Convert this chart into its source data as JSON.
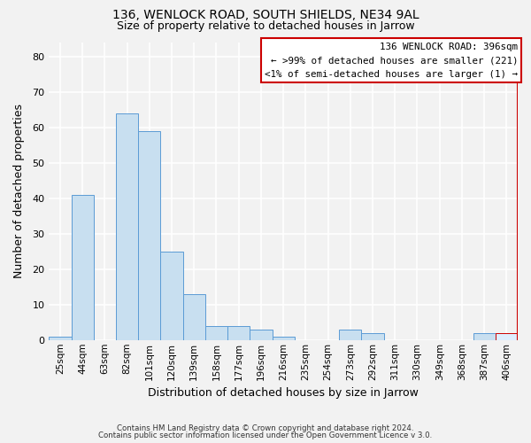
{
  "title": "136, WENLOCK ROAD, SOUTH SHIELDS, NE34 9AL",
  "subtitle": "Size of property relative to detached houses in Jarrow",
  "xlabel": "Distribution of detached houses by size in Jarrow",
  "ylabel": "Number of detached properties",
  "footer1": "Contains HM Land Registry data © Crown copyright and database right 2024.",
  "footer2": "Contains public sector information licensed under the Open Government Licence v 3.0.",
  "bin_labels": [
    "25sqm",
    "44sqm",
    "63sqm",
    "82sqm",
    "101sqm",
    "120sqm",
    "139sqm",
    "158sqm",
    "177sqm",
    "196sqm",
    "216sqm",
    "235sqm",
    "254sqm",
    "273sqm",
    "292sqm",
    "311sqm",
    "330sqm",
    "349sqm",
    "368sqm",
    "387sqm",
    "406sqm"
  ],
  "bar_heights": [
    1,
    41,
    0,
    64,
    59,
    25,
    13,
    4,
    4,
    3,
    1,
    0,
    0,
    3,
    2,
    0,
    0,
    0,
    0,
    2,
    2
  ],
  "bar_color": "#c8dff0",
  "bar_edge_color": "#5b9bd5",
  "highlight_bar_index": 20,
  "highlight_bar_color": "#ddeeff",
  "highlight_bar_edge_color": "#cc0000",
  "red_line_index": 20,
  "legend_title": "136 WENLOCK ROAD: 396sqm",
  "legend_line1": "← >99% of detached houses are smaller (221)",
  "legend_line2": "<1% of semi-detached houses are larger (1) →",
  "ylim": [
    0,
    84
  ],
  "yticks": [
    0,
    10,
    20,
    30,
    40,
    50,
    60,
    70,
    80
  ],
  "background_color": "#f2f2f2",
  "grid_color": "#ffffff",
  "title_fontsize": 10,
  "subtitle_fontsize": 9
}
